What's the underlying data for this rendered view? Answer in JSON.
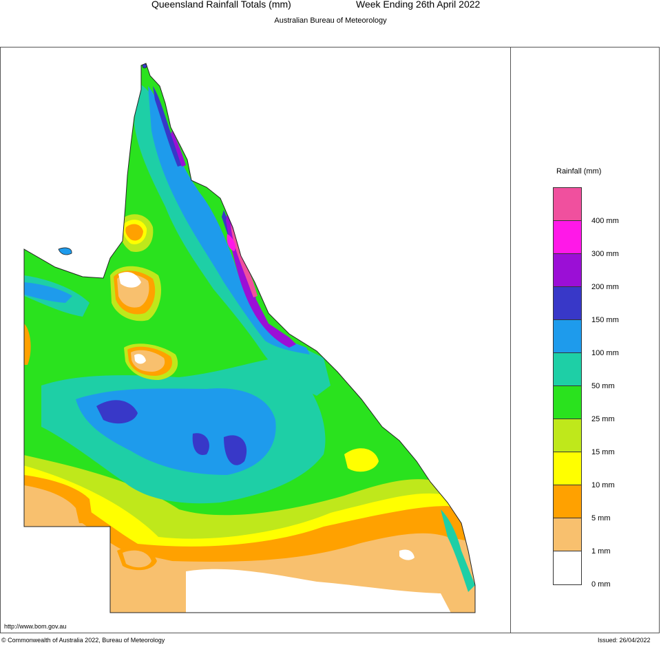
{
  "header": {
    "title_left": "Queensland Rainfall Totals (mm)",
    "title_right": "Week Ending 26th April 2022",
    "subtitle": "Australian Bureau of Meteorology"
  },
  "legend": {
    "title": "Rainfall (mm)",
    "colors": [
      "#f0509e",
      "#ff18e8",
      "#9b0fd6",
      "#3838c8",
      "#1e9bec",
      "#1ecfa6",
      "#2ae21e",
      "#bfe81b",
      "#ffff00",
      "#ffa100",
      "#f8c06e",
      "#ffffff"
    ],
    "labels": [
      "400 mm",
      "300 mm",
      "200 mm",
      "150 mm",
      "100 mm",
      "50 mm",
      "25 mm",
      "15 mm",
      "10 mm",
      "5 mm",
      "1 mm",
      "0 mm"
    ]
  },
  "footer": {
    "url": "http://www.bom.gov.au",
    "copyright": "© Commonwealth of Australia 2022, Bureau of Meteorology",
    "issued": "Issued: 26/04/2022"
  }
}
